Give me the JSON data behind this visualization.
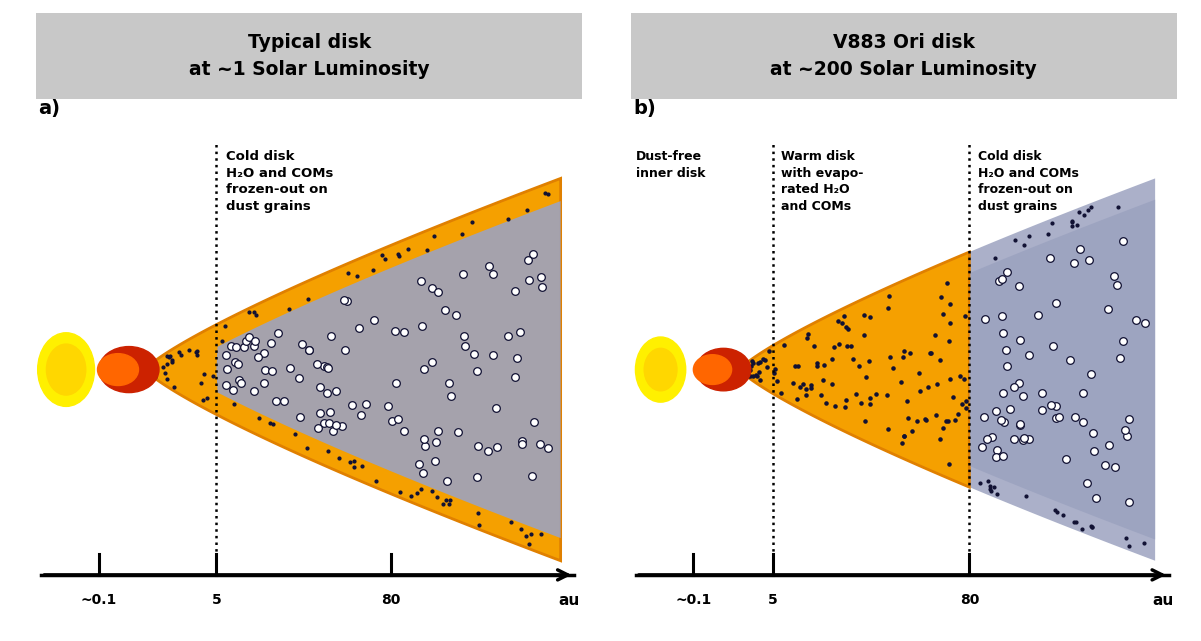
{
  "left_title": "Typical disk\nat ~1 Solar Luminosity",
  "right_title": "V883 Ori disk\nat ~200 Solar Luminosity",
  "label_a": "a)",
  "label_b": "b)",
  "header_bg": "#c8c8c8",
  "disk_blue": "#9ca3c0",
  "orange_color": "#f5a000",
  "orange_edge": "#e08000",
  "bg_color": "#ffffff",
  "left_text": "Cold disk\nH₂O and COMs\nfrozen-out on\ndust grains",
  "right_text1": "Dust-free\ninner disk",
  "right_text2": "Warm disk\nwith evapo-\nrated H₂O\nand COMs",
  "right_text3": "Cold disk\nH₂O and COMs\nfrozen-out on\ndust grains",
  "dot_color": "#111133",
  "sun_yellow": "#FFD700",
  "sun_yellow2": "#FFF000",
  "red_hot": "#cc2200",
  "orange_hot": "#ff6600"
}
